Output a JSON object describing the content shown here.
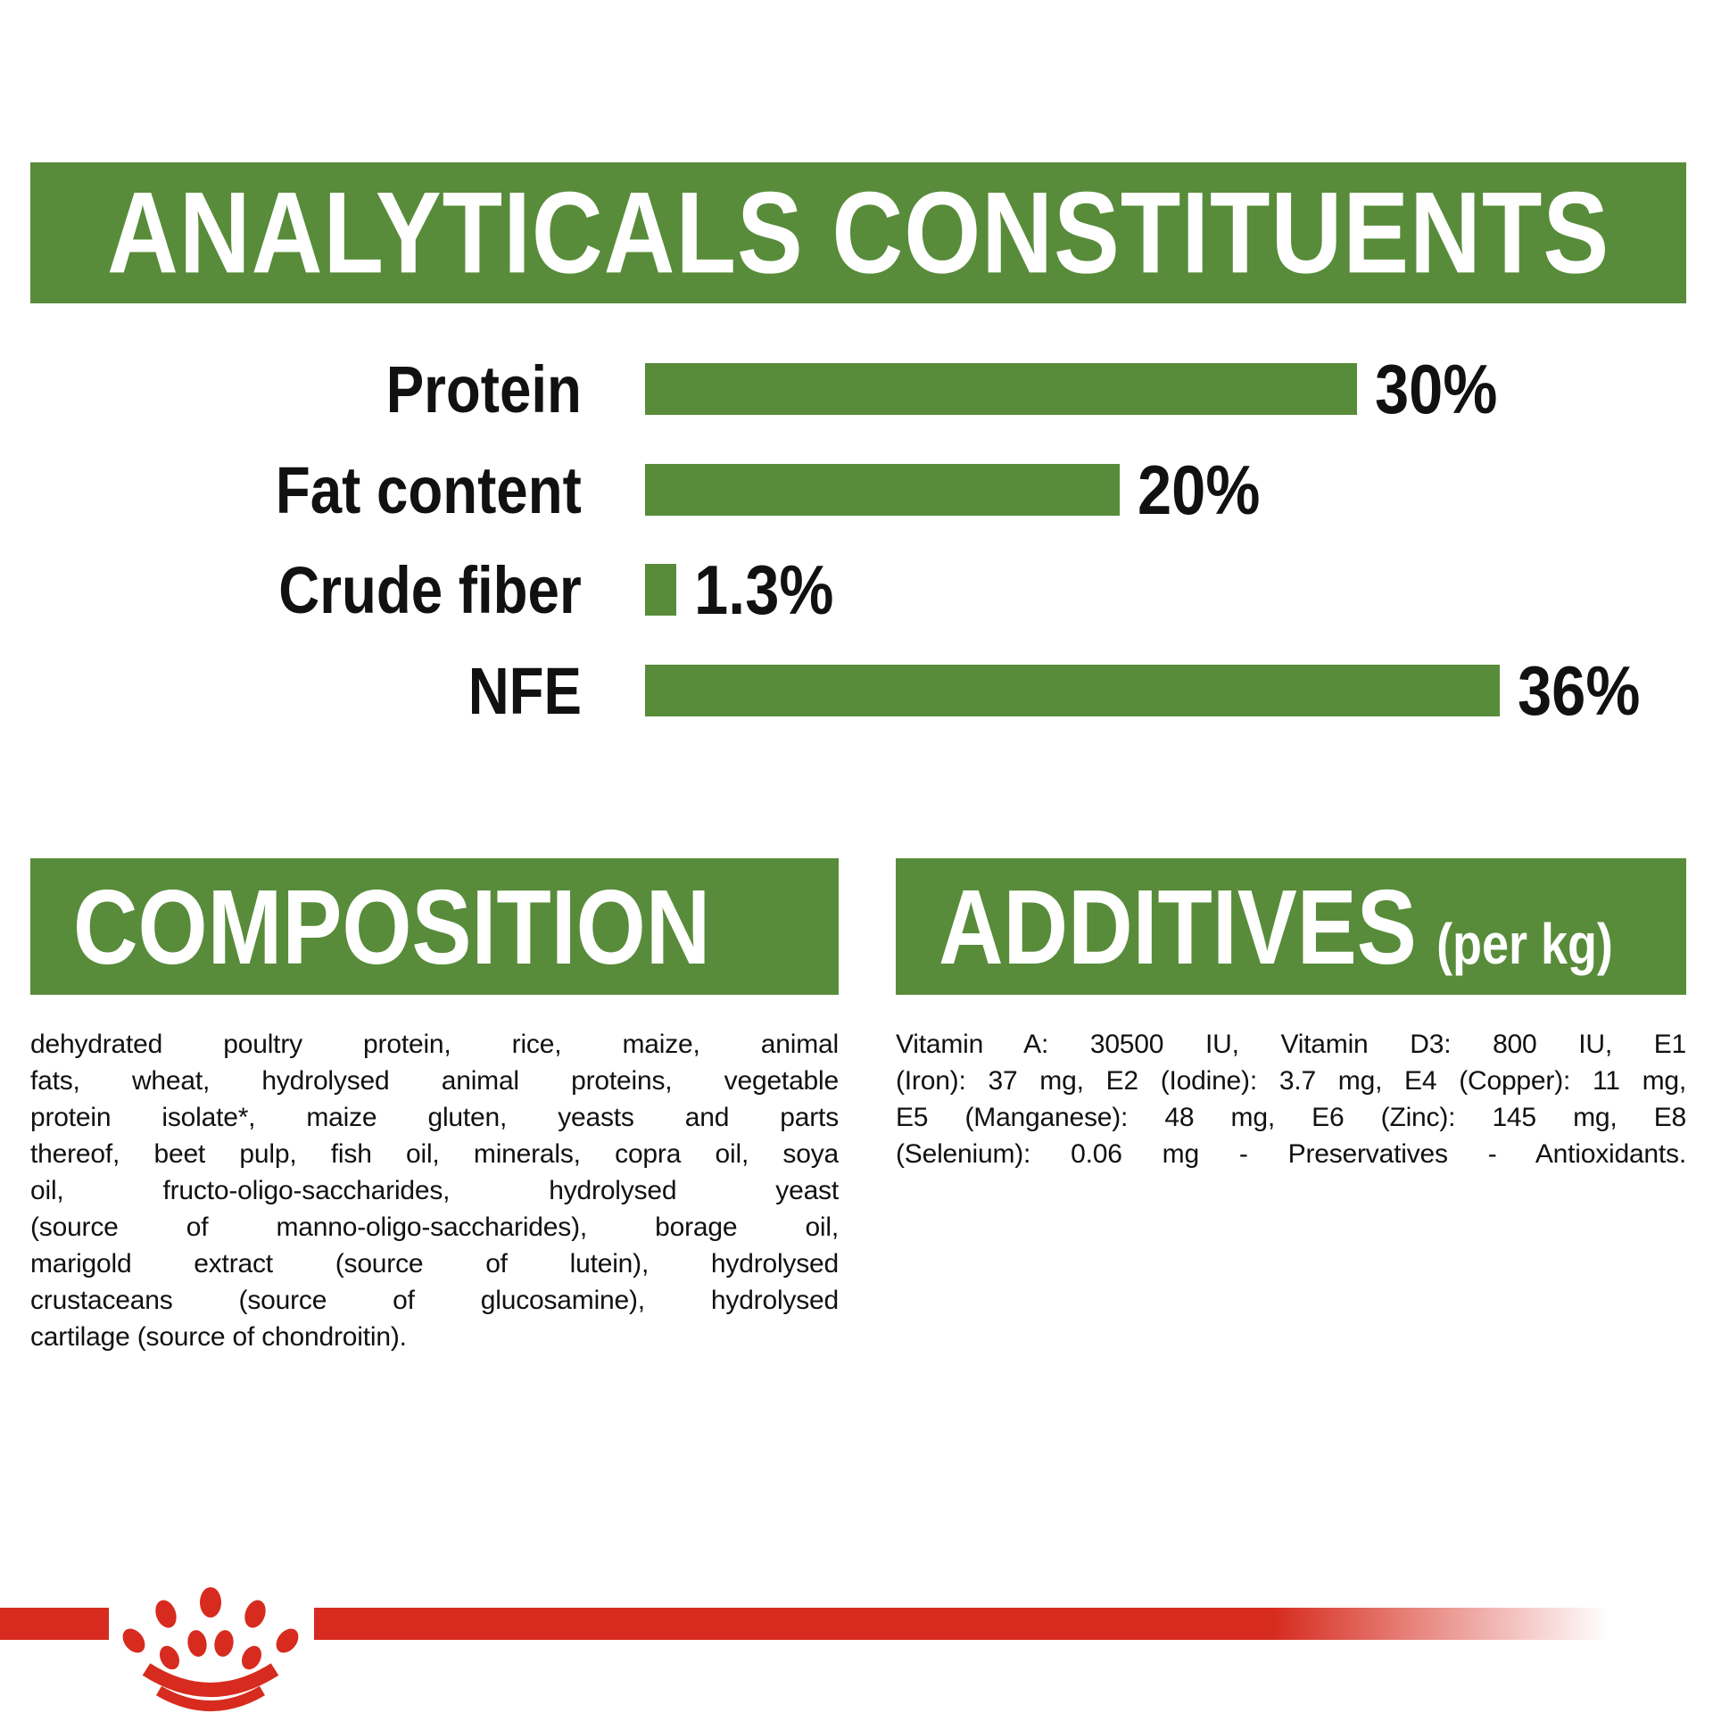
{
  "colors": {
    "green": "#588c3a",
    "red": "#d62b1e",
    "text": "#111111"
  },
  "header": {
    "title": "ANALYTICALS CONSTITUENTS"
  },
  "chart_data": {
    "type": "bar",
    "orientation": "horizontal",
    "title": "ANALYTICALS CONSTITUENTS",
    "categories": [
      "Protein",
      "Fat content",
      "Crude fiber",
      "NFE"
    ],
    "values": [
      30,
      20,
      1.3,
      36
    ],
    "value_labels": [
      "30%",
      "20%",
      "1.3%",
      "36%"
    ],
    "unit": "%",
    "xlim": [
      0,
      38
    ],
    "bar_color": "#588c3a",
    "grid": false,
    "legend": false
  },
  "composition": {
    "title": "COMPOSITION",
    "lines": [
      "dehydrated poultry protein, rice, maize, animal",
      "fats, wheat, hydrolysed animal proteins, vegetable",
      "protein isolate*, maize gluten, yeasts and parts",
      "thereof, beet pulp, fish oil, minerals, copra oil, soya",
      "oil, fructo-oligo-saccharides, hydrolysed yeast",
      "(source of manno-oligo-saccharides), borage oil,",
      "marigold extract (source of lutein), hydrolysed",
      "crustaceans (source of glucosamine), hydrolysed",
      "cartilage (source of chondroitin)."
    ]
  },
  "additives": {
    "title": "ADDITIVES",
    "title_suffix": "(per kg)",
    "lines": [
      "Vitamin A: 30500 IU, Vitamin D3: 800 IU, E1",
      "(Iron): 37 mg, E2 (Iodine): 3.7 mg, E4 (Copper): 11 mg,",
      "E5 (Manganese): 48 mg, E6 (Zinc): 145 mg, E8",
      "(Selenium): 0.06 mg - Preservatives - Antioxidants."
    ]
  },
  "footer": {
    "brand_mark": "royal-canin-crown-logo"
  }
}
